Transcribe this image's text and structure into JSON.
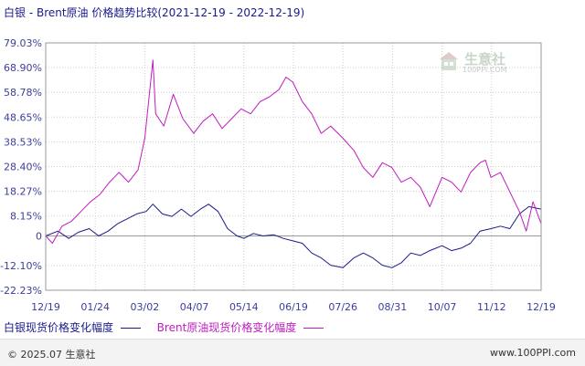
{
  "header": {
    "title": "白银 - Brent原油 价格趋势比较(2021-12-19 - 2022-12-19)"
  },
  "watermark": {
    "name": "生意社",
    "url": "100PPI.COM"
  },
  "legend": {
    "series1_label": "白银现货价格变化幅度",
    "series2_label": "Brent原油现货价格变化幅度"
  },
  "footer": {
    "copyright": "© 2025.07 生意社",
    "site": "www.100PPI.com"
  },
  "colors": {
    "silver": "#1a1a8c",
    "brent": "#c01cc0",
    "axis_text": "#3d3d9e",
    "grid": "#cccccc",
    "zero_line": "#999999"
  },
  "chart_data": {
    "type": "line",
    "title": "白银 - Brent原油 价格趋势比较(2021-12-19 - 2022-12-19)",
    "xlabel": "",
    "ylabel": "",
    "ylim": [
      -22.23,
      79.03
    ],
    "y_ticks": [
      "79.03%",
      "68.90%",
      "58.78%",
      "48.65%",
      "38.53%",
      "28.40%",
      "18.27%",
      "8.15%",
      "0",
      "-12.10%",
      "-22.23%"
    ],
    "y_tick_values": [
      79.03,
      68.9,
      58.78,
      48.65,
      38.53,
      28.4,
      18.27,
      8.15,
      0,
      -12.1,
      -22.23
    ],
    "x_ticks": [
      "12/19",
      "01/24",
      "03/02",
      "04/07",
      "05/14",
      "06/19",
      "07/26",
      "08/31",
      "10/07",
      "11/12",
      "12/19"
    ],
    "x_range": [
      "2021-12-19",
      "2022-12-19"
    ],
    "grid": true,
    "legend_position": "bottom",
    "series": [
      {
        "name": "白银现货价格变化幅度",
        "color": "#1a1a8c",
        "points": [
          [
            "2021-12-19",
            0
          ],
          [
            "2021-12-28",
            2
          ],
          [
            "2022-01-05",
            -1
          ],
          [
            "2022-01-12",
            1.5
          ],
          [
            "2022-01-20",
            3
          ],
          [
            "2022-01-27",
            0
          ],
          [
            "2022-02-03",
            2
          ],
          [
            "2022-02-10",
            5
          ],
          [
            "2022-02-17",
            7
          ],
          [
            "2022-02-24",
            9
          ],
          [
            "2022-03-03",
            10
          ],
          [
            "2022-03-08",
            13
          ],
          [
            "2022-03-15",
            9
          ],
          [
            "2022-03-22",
            8
          ],
          [
            "2022-03-29",
            11
          ],
          [
            "2022-04-05",
            8
          ],
          [
            "2022-04-12",
            11
          ],
          [
            "2022-04-18",
            13
          ],
          [
            "2022-04-25",
            10
          ],
          [
            "2022-05-02",
            3
          ],
          [
            "2022-05-09",
            0
          ],
          [
            "2022-05-14",
            -1
          ],
          [
            "2022-05-21",
            1
          ],
          [
            "2022-05-28",
            0
          ],
          [
            "2022-06-05",
            0.5
          ],
          [
            "2022-06-12",
            -1
          ],
          [
            "2022-06-19",
            -2
          ],
          [
            "2022-06-26",
            -3
          ],
          [
            "2022-07-03",
            -7
          ],
          [
            "2022-07-10",
            -9
          ],
          [
            "2022-07-17",
            -12
          ],
          [
            "2022-07-26",
            -13
          ],
          [
            "2022-08-03",
            -9
          ],
          [
            "2022-08-10",
            -7
          ],
          [
            "2022-08-17",
            -9
          ],
          [
            "2022-08-24",
            -12
          ],
          [
            "2022-08-31",
            -13
          ],
          [
            "2022-09-07",
            -11
          ],
          [
            "2022-09-14",
            -7
          ],
          [
            "2022-09-21",
            -8
          ],
          [
            "2022-09-28",
            -6
          ],
          [
            "2022-10-07",
            -4
          ],
          [
            "2022-10-14",
            -6
          ],
          [
            "2022-10-21",
            -5
          ],
          [
            "2022-10-28",
            -3
          ],
          [
            "2022-11-04",
            2
          ],
          [
            "2022-11-12",
            3
          ],
          [
            "2022-11-19",
            4
          ],
          [
            "2022-11-26",
            3
          ],
          [
            "2022-12-03",
            9
          ],
          [
            "2022-12-10",
            12
          ],
          [
            "2022-12-19",
            11
          ]
        ]
      },
      {
        "name": "Brent原油现货价格变化幅度",
        "color": "#c01cc0",
        "points": [
          [
            "2021-12-19",
            0
          ],
          [
            "2021-12-24",
            -3
          ],
          [
            "2021-12-31",
            4
          ],
          [
            "2022-01-07",
            6
          ],
          [
            "2022-01-14",
            10
          ],
          [
            "2022-01-21",
            14
          ],
          [
            "2022-01-28",
            17
          ],
          [
            "2022-02-04",
            22
          ],
          [
            "2022-02-11",
            26
          ],
          [
            "2022-02-18",
            22
          ],
          [
            "2022-02-25",
            27
          ],
          [
            "2022-03-02",
            40
          ],
          [
            "2022-03-08",
            72
          ],
          [
            "2022-03-10",
            50
          ],
          [
            "2022-03-16",
            45
          ],
          [
            "2022-03-23",
            58
          ],
          [
            "2022-03-30",
            48
          ],
          [
            "2022-04-07",
            42
          ],
          [
            "2022-04-14",
            47
          ],
          [
            "2022-04-21",
            50
          ],
          [
            "2022-04-28",
            44
          ],
          [
            "2022-05-05",
            48
          ],
          [
            "2022-05-12",
            52
          ],
          [
            "2022-05-19",
            50
          ],
          [
            "2022-05-26",
            55
          ],
          [
            "2022-06-02",
            57
          ],
          [
            "2022-06-09",
            60
          ],
          [
            "2022-06-14",
            65
          ],
          [
            "2022-06-19",
            63
          ],
          [
            "2022-06-26",
            55
          ],
          [
            "2022-07-03",
            50
          ],
          [
            "2022-07-10",
            42
          ],
          [
            "2022-07-17",
            45
          ],
          [
            "2022-07-26",
            40
          ],
          [
            "2022-08-03",
            35
          ],
          [
            "2022-08-10",
            28
          ],
          [
            "2022-08-17",
            24
          ],
          [
            "2022-08-24",
            30
          ],
          [
            "2022-08-31",
            28
          ],
          [
            "2022-09-07",
            22
          ],
          [
            "2022-09-14",
            24
          ],
          [
            "2022-09-21",
            20
          ],
          [
            "2022-09-28",
            12
          ],
          [
            "2022-10-07",
            24
          ],
          [
            "2022-10-14",
            22
          ],
          [
            "2022-10-21",
            18
          ],
          [
            "2022-10-28",
            26
          ],
          [
            "2022-11-04",
            30
          ],
          [
            "2022-11-08",
            31
          ],
          [
            "2022-11-12",
            24
          ],
          [
            "2022-11-19",
            26
          ],
          [
            "2022-11-26",
            18
          ],
          [
            "2022-12-03",
            10
          ],
          [
            "2022-12-08",
            2
          ],
          [
            "2022-12-13",
            14
          ],
          [
            "2022-12-19",
            5
          ]
        ]
      }
    ]
  }
}
